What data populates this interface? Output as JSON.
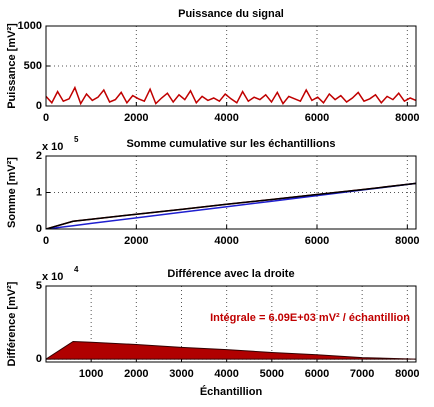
{
  "chart_data": [
    {
      "type": "line",
      "title": "Puissance du signal",
      "ylabel": "Puissance [mV²]",
      "xlim": [
        0,
        8192
      ],
      "xticks": [
        0,
        2000,
        4000,
        6000,
        8000
      ],
      "ylim": [
        0,
        1000
      ],
      "yticks": [
        0,
        500,
        1000
      ],
      "grid": true,
      "x": [
        0,
        128,
        256,
        384,
        512,
        640,
        768,
        896,
        1024,
        1152,
        1280,
        1408,
        1536,
        1664,
        1792,
        1920,
        2048,
        2176,
        2304,
        2432,
        2560,
        2688,
        2816,
        2944,
        3072,
        3200,
        3328,
        3456,
        3584,
        3712,
        3840,
        3968,
        4096,
        4224,
        4352,
        4480,
        4608,
        4736,
        4864,
        4992,
        5120,
        5248,
        5376,
        5504,
        5632,
        5760,
        5888,
        6016,
        6144,
        6272,
        6400,
        6528,
        6656,
        6784,
        6912,
        7040,
        7168,
        7296,
        7424,
        7552,
        7680,
        7808,
        7936,
        8064,
        8192
      ],
      "series": [
        {
          "color": "#c00000",
          "values": [
            120,
            40,
            180,
            60,
            90,
            230,
            30,
            150,
            70,
            110,
            200,
            50,
            80,
            170,
            40,
            130,
            90,
            60,
            210,
            30,
            100,
            160,
            50,
            140,
            80,
            190,
            40,
            120,
            70,
            100,
            60,
            150,
            90,
            40,
            180,
            60,
            110,
            80,
            140,
            50,
            170,
            30,
            120,
            90,
            60,
            200,
            70,
            110,
            40,
            150,
            80,
            130,
            50,
            100,
            170,
            60,
            90,
            140,
            40,
            120,
            80,
            160,
            60,
            100,
            70
          ]
        }
      ]
    },
    {
      "type": "line",
      "title": "Somme cumulative sur les échantillions",
      "ylabel": "Somme [mV²]",
      "y_multiplier": "x 10",
      "y_exponent": "5",
      "xlim": [
        0,
        8192
      ],
      "xticks": [
        0,
        2000,
        4000,
        6000,
        8000
      ],
      "ylim": [
        0,
        200000
      ],
      "yticks": [
        0,
        {
          "value": 100000,
          "label": "1"
        },
        {
          "value": 200000,
          "label": "2"
        }
      ],
      "grid": true,
      "x": [
        0,
        600,
        1000,
        2000,
        3000,
        4000,
        5000,
        6000,
        7000,
        8192
      ],
      "series": [
        {
          "color": "#c00000",
          "values": [
            0,
            21155,
            26759,
            40518,
            53776,
            67535,
            80794,
            94553,
            107812,
            125000
          ]
        },
        {
          "color": "#1f1fcf",
          "values": [
            0,
            9155,
            15259,
            30518,
            45776,
            61035,
            76294,
            91553,
            106812,
            125000
          ]
        },
        {
          "color": "#000000",
          "values": [
            0,
            21155,
            26759,
            40518,
            53776,
            67535,
            80794,
            94553,
            107812,
            125000
          ]
        }
      ]
    },
    {
      "type": "area",
      "title": "Différence avec la droite",
      "ylabel": "Différence [mV²]",
      "xlabel": "Échantillion",
      "y_multiplier": "x 10",
      "y_exponent": "4",
      "annotation": "Intégrale = 6.09E+03 mV² / échantillion",
      "annotation_color": "#c00000",
      "xlim": [
        0,
        8192
      ],
      "xticks": [
        1000,
        2000,
        3000,
        4000,
        5000,
        6000,
        7000,
        8000
      ],
      "ylim": [
        -2000,
        50000
      ],
      "yticks": [
        0,
        {
          "value": 50000,
          "label": "5"
        }
      ],
      "grid": true,
      "x": [
        0,
        600,
        1000,
        2000,
        3000,
        4000,
        5000,
        6000,
        7000,
        8192
      ],
      "series": [
        {
          "color": "#b00000",
          "values": [
            0,
            12000,
            11500,
            10000,
            8000,
            6500,
            4500,
            3000,
            1000,
            0
          ]
        }
      ]
    }
  ]
}
